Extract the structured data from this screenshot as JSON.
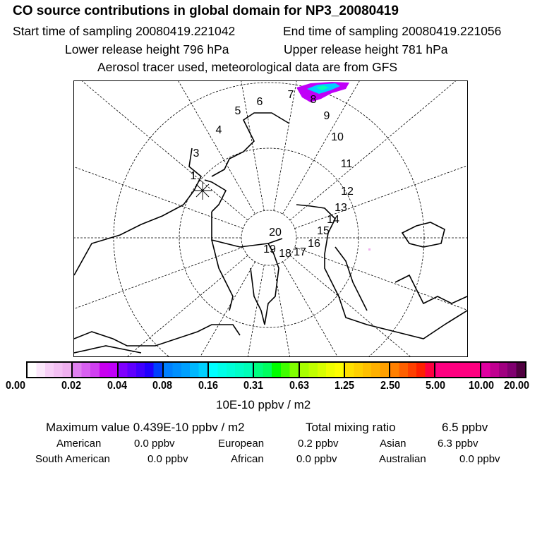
{
  "header": {
    "title": "CO  source contributions in global domain for NP3_20080419",
    "start_time": "Start time of sampling 20080419.221042",
    "end_time": "End time of sampling 20080419.221056",
    "lower_height": "Lower release height  796 hPa",
    "upper_height": "Upper release height  781 hPa",
    "note": "Aerosol tracer used, meteorological data are from GFS"
  },
  "map": {
    "trajectory_labels": [
      "1",
      "3",
      "4",
      "5",
      "6",
      "7",
      "8",
      "9",
      "10",
      "11",
      "12",
      "13",
      "14",
      "15",
      "16",
      "17",
      "18",
      "19",
      "20"
    ],
    "release_marker_icon": "asterisk-icon"
  },
  "colorbar": {
    "ticks": [
      "0.00",
      "0.02",
      "0.04",
      "0.08",
      "0.16",
      "0.31",
      "0.63",
      "1.25",
      "2.50",
      "5.00",
      "10.00",
      "20.00"
    ],
    "segments": [
      [
        "#ffffff",
        "#fce8fc",
        "#f8d0f8",
        "#f4c0f4",
        "#f0b0f0"
      ],
      [
        "#e080f0",
        "#d860f0",
        "#d040f0",
        "#c800f0",
        "#c000f8"
      ],
      [
        "#8000ff",
        "#6000ff",
        "#4000ff",
        "#2000ff",
        "#0040ff"
      ],
      [
        "#0080ff",
        "#0090ff",
        "#00a0ff",
        "#00b8ff",
        "#00d0ff"
      ],
      [
        "#00ffff",
        "#00ffe8",
        "#00ffd8",
        "#00ffc8",
        "#00ffb8"
      ],
      [
        "#00ff80",
        "#00ff60",
        "#00ff00",
        "#40ff00",
        "#80ff00"
      ],
      [
        "#a8ff00",
        "#c0ff00",
        "#d8ff00",
        "#f0ff00",
        "#ffff00"
      ],
      [
        "#ffe000",
        "#ffd000",
        "#ffc000",
        "#ffb000",
        "#ffa000"
      ],
      [
        "#ff8000",
        "#ff6000",
        "#ff4000",
        "#ff2000",
        "#ff0040"
      ],
      [
        "#ff0080",
        "#ff0080",
        "#ff0080",
        "#ff0080",
        "#ff0080"
      ],
      [
        "#e000a0",
        "#c00090",
        "#a00080",
        "#800070",
        "#500040"
      ]
    ],
    "unit": "10E-10 ppbv / m2"
  },
  "stats": {
    "max_value": "Maximum value  0.439E-10 ppbv / m2",
    "total_label": "Total mixing ratio",
    "total_value": "6.5 ppbv",
    "regions": [
      {
        "name": "American",
        "value": "0.0 ppbv"
      },
      {
        "name": "European",
        "value": "0.2 ppbv"
      },
      {
        "name": "Asian",
        "value": "6.3 ppbv"
      },
      {
        "name": "South American",
        "value": "0.0 ppbv"
      },
      {
        "name": "African",
        "value": "0.0 ppbv"
      },
      {
        "name": "Australian",
        "value": "0.0 ppbv"
      }
    ]
  }
}
